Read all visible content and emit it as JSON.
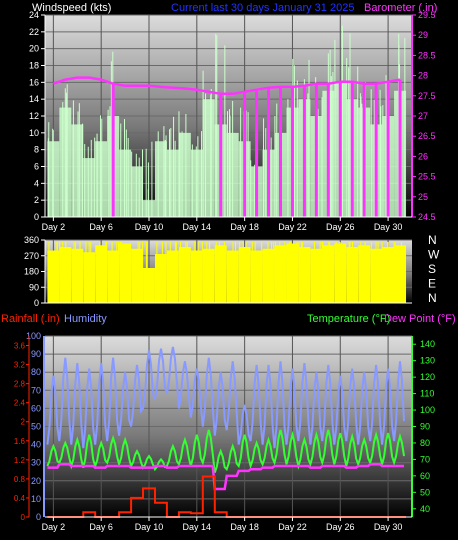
{
  "header": {
    "left_title": "Windspeed (kts)",
    "center_title": "Current last 30 days January 31 2025",
    "right_title": "Barometer (.in)"
  },
  "colors": {
    "wind": "#ccffcc",
    "wind_avg": "#66dd66",
    "barometer": "#ff33ff",
    "direction": "#ffff00",
    "rain": "#ff2200",
    "humidity": "#8899ff",
    "temperature": "#33ff33",
    "dewpoint": "#ff33ff",
    "axis_left_top": "#ffffff",
    "axis_right_top": "#ff33ff"
  },
  "chart_data": [
    {
      "type": "bar",
      "title": "",
      "series": [
        {
          "name": "Windspeed (kts)",
          "x": [
            2,
            3,
            4,
            5,
            6,
            7,
            8,
            9,
            10,
            11,
            12,
            13,
            14,
            15,
            16,
            17,
            18,
            19,
            20,
            21,
            22,
            23,
            24,
            25,
            26,
            27,
            28,
            29,
            30,
            31
          ],
          "values": [
            9,
            13,
            11,
            7,
            9,
            12,
            8,
            6,
            2,
            9,
            8,
            10,
            8,
            14,
            11,
            10,
            9,
            6,
            8,
            10,
            13,
            14,
            12,
            15,
            16,
            14,
            13,
            11,
            12,
            15
          ],
          "max_values": [
            12,
            16,
            14,
            10,
            13,
            22,
            12,
            9,
            10,
            14,
            12,
            14,
            11,
            18,
            22,
            14,
            13,
            9,
            12,
            15,
            23,
            22,
            17,
            23,
            24,
            22,
            18,
            16,
            17,
            22
          ]
        },
        {
          "name": "Barometer (.in)",
          "x": [
            2,
            3,
            4,
            5,
            6,
            7,
            8,
            9,
            10,
            11,
            12,
            13,
            14,
            15,
            16,
            17,
            18,
            19,
            20,
            21,
            22,
            23,
            24,
            25,
            26,
            27,
            28,
            29,
            30,
            31
          ],
          "values": [
            27.8,
            27.9,
            27.95,
            27.95,
            27.9,
            27.8,
            27.75,
            27.75,
            27.75,
            27.72,
            27.7,
            27.68,
            27.65,
            27.6,
            27.55,
            27.55,
            27.6,
            27.65,
            27.7,
            27.72,
            27.72,
            27.75,
            27.8,
            27.8,
            27.85,
            27.85,
            27.8,
            27.8,
            27.85,
            27.9
          ]
        }
      ],
      "xlabel": "",
      "ylabel_left": "Windspeed (kts)",
      "ylabel_right": "Barometer (.in)",
      "ylim_left": [
        0,
        24
      ],
      "ylim_right": [
        24.5,
        29.5
      ],
      "ticks_left": [
        "0",
        "2",
        "4",
        "6",
        "8",
        "10",
        "12",
        "14",
        "16",
        "18",
        "20",
        "22",
        "24"
      ],
      "ticks_right": [
        "24.5",
        "25",
        "25.5",
        "26",
        "26.5",
        "27",
        "27.5",
        "28",
        "28.5",
        "29",
        "29.5"
      ],
      "x_ticks": [
        "Day 2",
        "Day 6",
        "Day 10",
        "Day 14",
        "Day 18",
        "Day 22",
        "Day 26",
        "Day 30"
      ],
      "grid": true
    },
    {
      "type": "bar",
      "title": "",
      "series": [
        {
          "name": "Wind direction",
          "x": [
            2,
            3,
            4,
            5,
            6,
            7,
            8,
            9,
            10,
            11,
            12,
            13,
            14,
            15,
            16,
            17,
            18,
            19,
            20,
            21,
            22,
            23,
            24,
            25,
            26,
            27,
            28,
            29,
            30,
            31
          ],
          "values": [
            300,
            320,
            310,
            290,
            330,
            300,
            340,
            310,
            200,
            280,
            300,
            320,
            300,
            310,
            330,
            300,
            320,
            300,
            310,
            330,
            340,
            320,
            310,
            330,
            340,
            320,
            330,
            310,
            320,
            330
          ]
        }
      ],
      "ylim": [
        0,
        360
      ],
      "ticks_left": [
        "0",
        "90",
        "180",
        "270",
        "360"
      ],
      "ticks_right": [
        "N",
        "W",
        "S",
        "E",
        "N"
      ],
      "grid": true
    },
    {
      "type": "line",
      "title": "",
      "series": [
        {
          "name": "Rainfall (.in)",
          "x": [
            2,
            3,
            4,
            5,
            6,
            7,
            8,
            9,
            10,
            11,
            12,
            13,
            14,
            15,
            16,
            17,
            18,
            19,
            20,
            21,
            22,
            23,
            24,
            25,
            26,
            27,
            28,
            29,
            30,
            31
          ],
          "values": [
            0,
            0,
            0,
            0.1,
            0,
            0,
            0.1,
            0.4,
            0.6,
            0.3,
            0,
            0.1,
            0.08,
            0.85,
            0.1,
            0,
            0,
            0,
            0,
            0,
            0,
            0,
            0,
            0,
            0,
            0,
            0,
            0,
            0,
            0
          ]
        },
        {
          "name": "Humidity",
          "x": [
            2,
            3,
            4,
            5,
            6,
            7,
            8,
            9,
            10,
            11,
            12,
            13,
            14,
            15,
            16,
            17,
            18,
            19,
            20,
            21,
            22,
            23,
            24,
            25,
            26,
            27,
            28,
            29,
            30,
            31
          ],
          "values": [
            78,
            88,
            85,
            82,
            85,
            88,
            80,
            84,
            92,
            93,
            94,
            86,
            82,
            88,
            80,
            86,
            62,
            84,
            84,
            86,
            82,
            85,
            80,
            84,
            78,
            82,
            80,
            84,
            82,
            86
          ],
          "min_values": [
            40,
            42,
            40,
            38,
            40,
            42,
            45,
            50,
            60,
            65,
            68,
            60,
            55,
            50,
            45,
            48,
            40,
            42,
            40,
            38,
            40,
            42,
            40,
            42,
            40,
            42,
            40,
            42,
            40,
            42
          ]
        },
        {
          "name": "Temperature (°F)",
          "x": [
            2,
            3,
            4,
            5,
            6,
            7,
            8,
            9,
            10,
            11,
            12,
            13,
            14,
            15,
            16,
            17,
            18,
            19,
            20,
            21,
            22,
            23,
            24,
            25,
            26,
            27,
            28,
            29,
            30,
            31
          ],
          "values": [
            78,
            80,
            82,
            85,
            80,
            83,
            82,
            75,
            72,
            70,
            78,
            82,
            85,
            88,
            75,
            78,
            85,
            80,
            82,
            88,
            85,
            82,
            85,
            88,
            86,
            84,
            82,
            85,
            86,
            84
          ],
          "min_values": [
            66,
            68,
            66,
            65,
            66,
            68,
            67,
            66,
            65,
            64,
            66,
            67,
            66,
            68,
            62,
            64,
            66,
            66,
            67,
            68,
            67,
            66,
            67,
            68,
            67,
            66,
            67,
            68,
            67,
            68
          ]
        },
        {
          "name": "Dew Point (°F)",
          "x": [
            2,
            3,
            4,
            5,
            6,
            7,
            8,
            9,
            10,
            11,
            12,
            13,
            14,
            15,
            16,
            17,
            18,
            19,
            20,
            21,
            22,
            23,
            24,
            25,
            26,
            27,
            28,
            29,
            30,
            31
          ],
          "values": [
            65,
            67,
            66,
            66,
            65,
            66,
            66,
            65,
            65,
            66,
            65,
            66,
            66,
            66,
            52,
            60,
            63,
            64,
            65,
            66,
            66,
            66,
            65,
            66,
            66,
            65,
            66,
            67,
            66,
            66
          ]
        }
      ],
      "ylabel_left_outer": "Rainfall (.in)",
      "ylabel_left_inner": "Humidity",
      "ylabel_right_a": "Temperature (°F)",
      "ylabel_right_b": "Dew Point (°F)",
      "ylim_rain": [
        0,
        3.8
      ],
      "ylim_humidity": [
        0,
        100
      ],
      "ylim_temp": [
        35,
        145
      ],
      "ticks_rain": [
        "0",
        "0.4",
        "0.8",
        "1.2",
        "1.6",
        "2",
        "2.4",
        "2.8",
        "3.2",
        "3.6"
      ],
      "ticks_humidity": [
        "0",
        "10",
        "20",
        "30",
        "40",
        "50",
        "60",
        "70",
        "80",
        "90",
        "100"
      ],
      "ticks_temp": [
        "40",
        "50",
        "60",
        "70",
        "80",
        "90",
        "100",
        "110",
        "120",
        "130",
        "140"
      ],
      "x_ticks": [
        "Day 2",
        "Day 6",
        "Day 10",
        "Day 14",
        "Day 18",
        "Day 22",
        "Day 26",
        "Day 30"
      ],
      "grid": true
    }
  ]
}
